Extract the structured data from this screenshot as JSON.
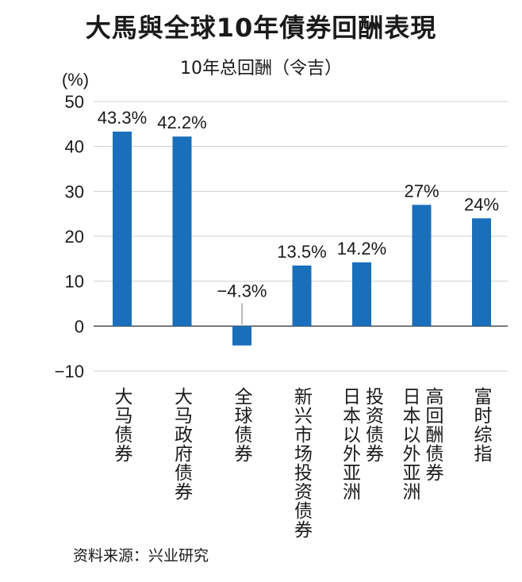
{
  "chart_data": {
    "type": "bar",
    "title": "大馬與全球10年債券回酬表現",
    "subtitle": "10年总回酬（令吉）",
    "ylabel": "(%)",
    "yticks": [
      50,
      40,
      30,
      20,
      10,
      0,
      -10
    ],
    "ylim": [
      -10,
      50
    ],
    "grid": true,
    "categories": [
      "大马债券",
      "大马政府债券",
      "全球债券",
      "新兴市场投资债券",
      "日本以外亚洲投资债券",
      "日本以外亚洲高回酬债券",
      "富时综指"
    ],
    "category_lines": [
      [
        "大马债券"
      ],
      [
        "大马政府债券"
      ],
      [
        "全球债券"
      ],
      [
        "新兴市场投资债券"
      ],
      [
        "日本以外亚洲",
        "投资债券"
      ],
      [
        "日本以外亚洲",
        "高回酬债券"
      ],
      [
        "富时综指"
      ]
    ],
    "values": [
      43.3,
      42.2,
      -4.3,
      13.5,
      14.2,
      27,
      24
    ],
    "value_labels": [
      "43.3%",
      "42.2%",
      "−4.3%",
      "13.5%",
      "14.2%",
      "27%",
      "24%"
    ],
    "bar_color": "#1a6fba",
    "source": "资料来源：兴业研究"
  }
}
